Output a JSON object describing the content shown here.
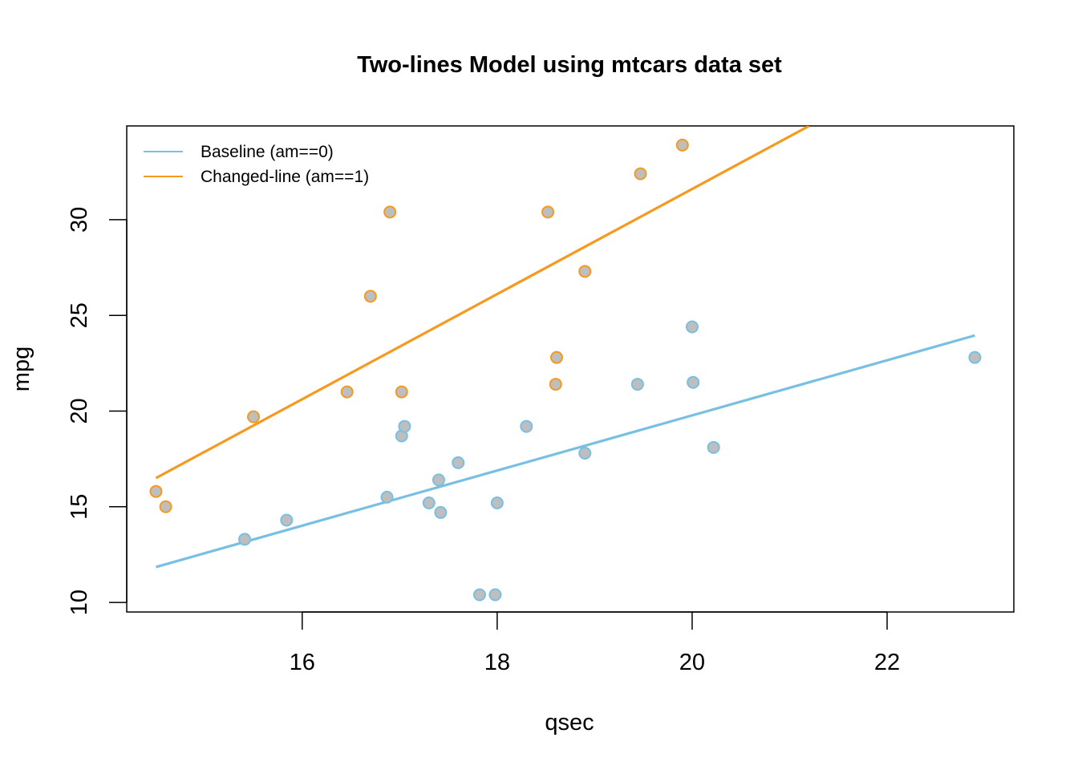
{
  "chart_data": {
    "type": "scatter",
    "title": "Two-lines Model using mtcars data set",
    "xlabel": "qsec",
    "ylabel": "mpg",
    "xlim": [
      14.2,
      23.3
    ],
    "ylim": [
      9.5,
      34.9
    ],
    "xticks": [
      16,
      18,
      20,
      22
    ],
    "yticks": [
      10,
      15,
      20,
      25,
      30
    ],
    "grid": false,
    "legend_position": "top-left",
    "series": [
      {
        "name": "Baseline (am==0)",
        "color": "#78C0E3",
        "points": [
          [
            19.44,
            21.4
          ],
          [
            17.02,
            18.7
          ],
          [
            20.22,
            18.1
          ],
          [
            15.84,
            14.3
          ],
          [
            20.0,
            24.4
          ],
          [
            22.9,
            22.8
          ],
          [
            18.3,
            19.2
          ],
          [
            18.9,
            17.8
          ],
          [
            17.4,
            16.4
          ],
          [
            17.6,
            17.3
          ],
          [
            18.0,
            15.2
          ],
          [
            17.98,
            10.4
          ],
          [
            17.82,
            10.4
          ],
          [
            17.42,
            14.7
          ],
          [
            20.01,
            21.5
          ],
          [
            16.87,
            15.5
          ],
          [
            17.3,
            15.2
          ],
          [
            15.41,
            13.3
          ],
          [
            17.05,
            19.2
          ]
        ],
        "fit_line": {
          "x": [
            14.5,
            22.9
          ],
          "y": [
            11.85,
            23.95
          ]
        }
      },
      {
        "name": "Changed-line (am==1)",
        "color": "#F59A1F",
        "points": [
          [
            16.46,
            21.0
          ],
          [
            17.02,
            21.0
          ],
          [
            18.61,
            22.8
          ],
          [
            19.47,
            32.4
          ],
          [
            18.52,
            30.4
          ],
          [
            19.9,
            33.9
          ],
          [
            18.9,
            27.3
          ],
          [
            16.7,
            26.0
          ],
          [
            16.9,
            30.4
          ],
          [
            14.5,
            15.8
          ],
          [
            15.5,
            19.7
          ],
          [
            14.6,
            15.0
          ],
          [
            18.6,
            21.4
          ]
        ],
        "fit_line": {
          "x": [
            14.5,
            21.2
          ],
          "y": [
            16.5,
            34.9
          ]
        }
      }
    ],
    "point_fill": "#BEBEBE"
  }
}
